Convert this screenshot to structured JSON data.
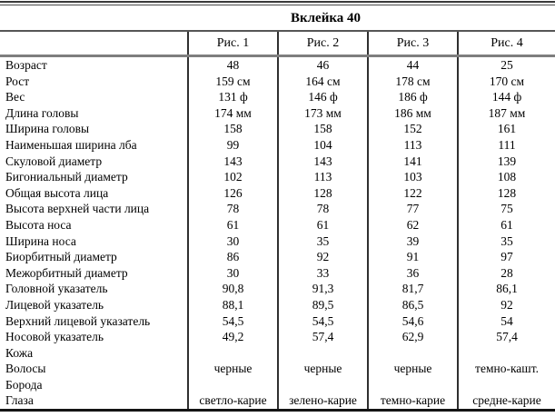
{
  "title": "Вклейка 40",
  "colors": {
    "text": "#000000",
    "background": "#ffffff",
    "rule_dark": "#2f2f2f",
    "rule_gray": "#7e7e7e"
  },
  "table": {
    "col_headers": [
      "Рис. 1",
      "Рис. 2",
      "Рис. 3",
      "Рис. 4"
    ],
    "rows": [
      {
        "label": "Возраст",
        "values": [
          "48",
          "46",
          "44",
          "25"
        ]
      },
      {
        "label": "Рост",
        "values": [
          "159 см",
          "164 см",
          "178 см",
          "170 см"
        ]
      },
      {
        "label": "Вес",
        "values": [
          "131 ф",
          "146 ф",
          "186 ф",
          "144 ф"
        ]
      },
      {
        "label": "Длина головы",
        "values": [
          "174 мм",
          "173 мм",
          "186 мм",
          "187 мм"
        ]
      },
      {
        "label": "Ширина головы",
        "values": [
          "158",
          "158",
          "152",
          "161"
        ]
      },
      {
        "label": "Наименьшая ширина лба",
        "values": [
          "99",
          "104",
          "113",
          "111"
        ]
      },
      {
        "label": "Скуловой диаметр",
        "values": [
          "143",
          "143",
          "141",
          "139"
        ]
      },
      {
        "label": "Бигониальный диаметр",
        "values": [
          "102",
          "113",
          "103",
          "108"
        ]
      },
      {
        "label": "Общая высота лица",
        "values": [
          "126",
          "128",
          "122",
          "128"
        ]
      },
      {
        "label": "Высота верхней части лица",
        "values": [
          "78",
          "78",
          "77",
          "75"
        ]
      },
      {
        "label": "Высота носа",
        "values": [
          "61",
          "61",
          "62",
          "61"
        ]
      },
      {
        "label": "Ширина носа",
        "values": [
          "30",
          "35",
          "39",
          "35"
        ]
      },
      {
        "label": "Биорбитный диаметр",
        "values": [
          "86",
          "92",
          "91",
          "97"
        ]
      },
      {
        "label": "Межорбитный диаметр",
        "values": [
          "30",
          "33",
          "36",
          "28"
        ]
      },
      {
        "label": "Головной указатель",
        "values": [
          "90,8",
          "91,3",
          "81,7",
          "86,1"
        ]
      },
      {
        "label": "Лицевой указатель",
        "values": [
          "88,1",
          "89,5",
          "86,5",
          "92"
        ]
      },
      {
        "label": "Верхний лицевой указатель",
        "values": [
          "54,5",
          "54,5",
          "54,6",
          "54"
        ]
      },
      {
        "label": "Носовой указатель",
        "values": [
          "49,2",
          "57,4",
          "62,9",
          "57,4"
        ]
      },
      {
        "label": "Кожа",
        "values": [
          "",
          "",
          "",
          ""
        ]
      },
      {
        "label": "Волосы",
        "values": [
          "черные",
          "черные",
          "черные",
          "темно-кашт."
        ]
      },
      {
        "label": "Борода",
        "values": [
          "",
          "",
          "",
          ""
        ]
      },
      {
        "label": "Глаза",
        "values": [
          "светло-карие",
          "зелено-карие",
          "темно-карие",
          "средне-карие"
        ]
      }
    ]
  }
}
